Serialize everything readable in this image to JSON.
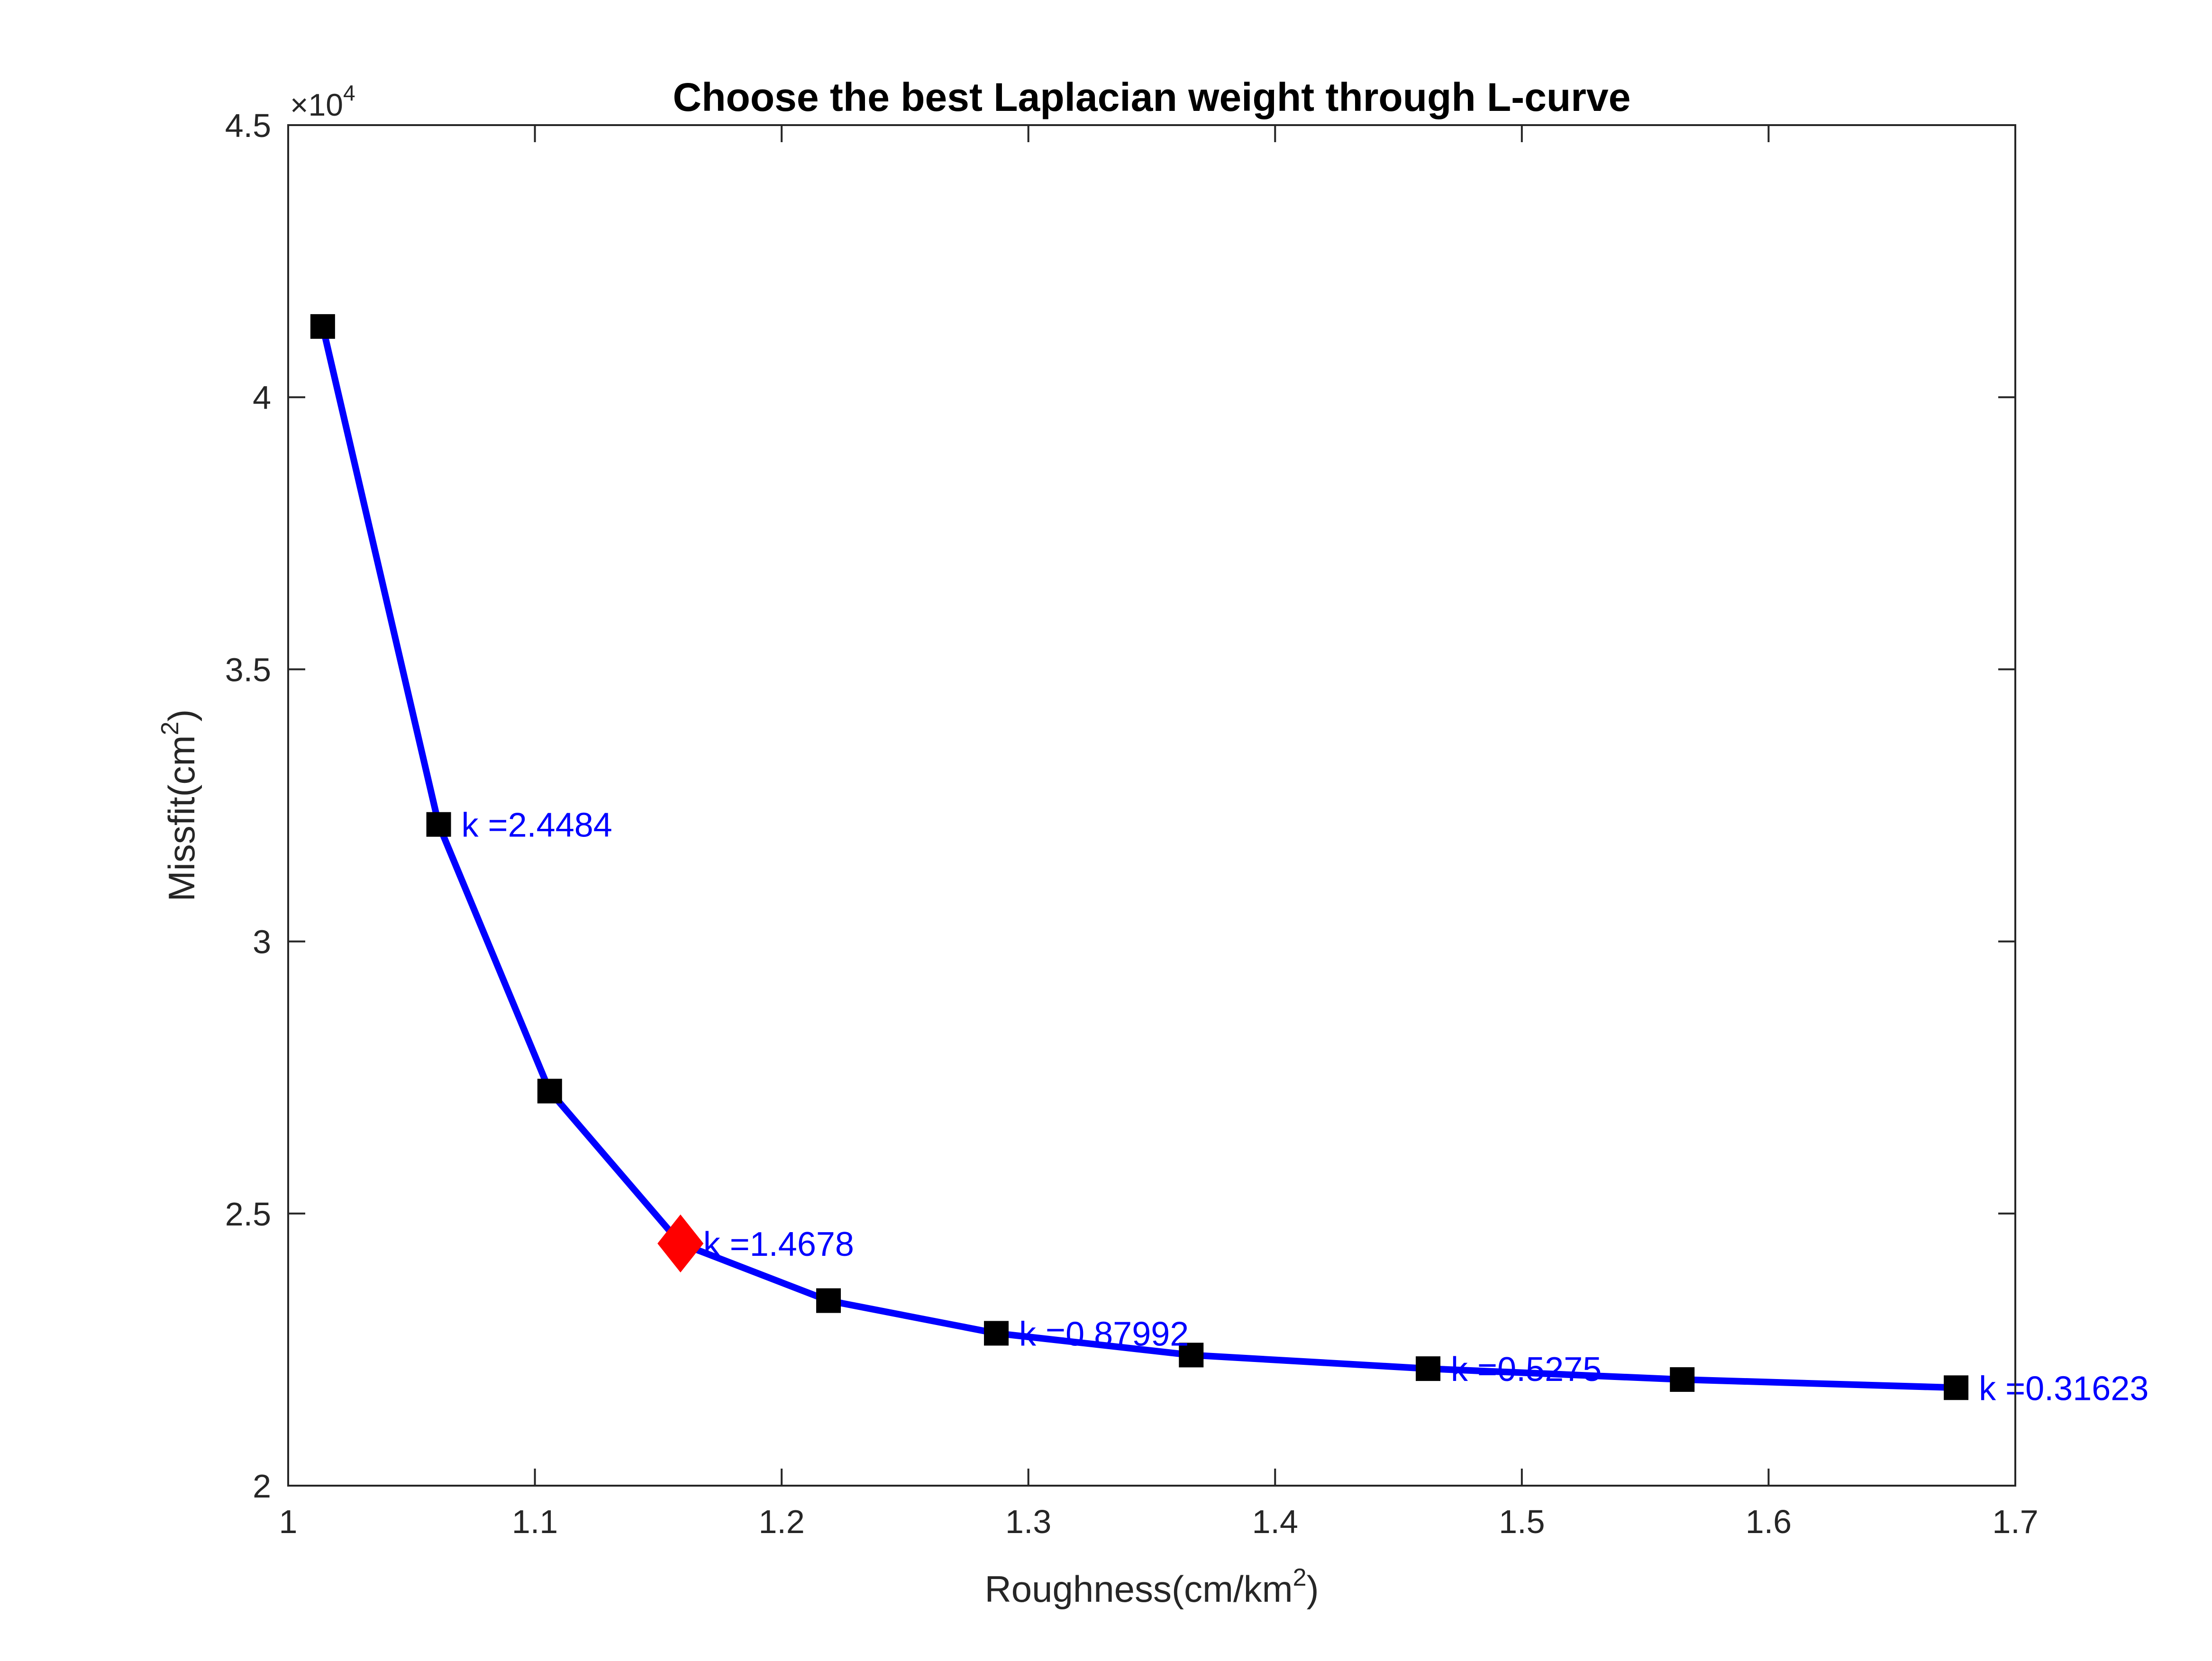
{
  "chart_data": {
    "type": "line",
    "title": "Choose the best Laplacian weight through L-curve",
    "xlabel": "Roughness(cm/km",
    "xlabel_sup": "2",
    "xlabel_suffix": ")",
    "ylabel": "Missfit(cm",
    "ylabel_sup": "2",
    "ylabel_suffix": ")",
    "y_exponent_prefix": "×10",
    "y_exponent_power": "4",
    "xlim": [
      1.0,
      1.7
    ],
    "ylim": [
      20000,
      45000
    ],
    "xticks": [
      1,
      1.1,
      1.2,
      1.3,
      1.4,
      1.5,
      1.6,
      1.7
    ],
    "xtick_labels": [
      "1",
      "1.1",
      "1.2",
      "1.3",
      "1.4",
      "1.5",
      "1.6",
      "1.7"
    ],
    "yticks": [
      20000,
      25000,
      30000,
      35000,
      40000,
      45000
    ],
    "ytick_labels": [
      "2",
      "2.5",
      "3",
      "3.5",
      "4",
      "4.5"
    ],
    "grid": false,
    "line_color": "#0000ff",
    "marker_color": "#000000",
    "best_marker_color": "#ff0000",
    "annotation_color": "#0000ff",
    "series": [
      {
        "x": [
          1.014,
          1.061,
          1.106,
          1.159,
          1.219,
          1.287,
          1.366,
          1.462,
          1.565,
          1.676
        ],
        "y": [
          41300,
          32150,
          27250,
          24450,
          23400,
          22800,
          22400,
          22150,
          21950,
          21800
        ]
      }
    ],
    "best_point": {
      "x": 1.159,
      "y": 24450
    },
    "annotations": [
      {
        "text": "k =2.4484",
        "x": 1.061,
        "y": 32150
      },
      {
        "text": "k =1.4678",
        "x": 1.159,
        "y": 24450
      },
      {
        "text": "k =0.87992",
        "x": 1.287,
        "y": 22800
      },
      {
        "text": "k =0.5275",
        "x": 1.462,
        "y": 22150
      },
      {
        "text": "k =0.31623",
        "x": 1.676,
        "y": 21800
      }
    ]
  }
}
